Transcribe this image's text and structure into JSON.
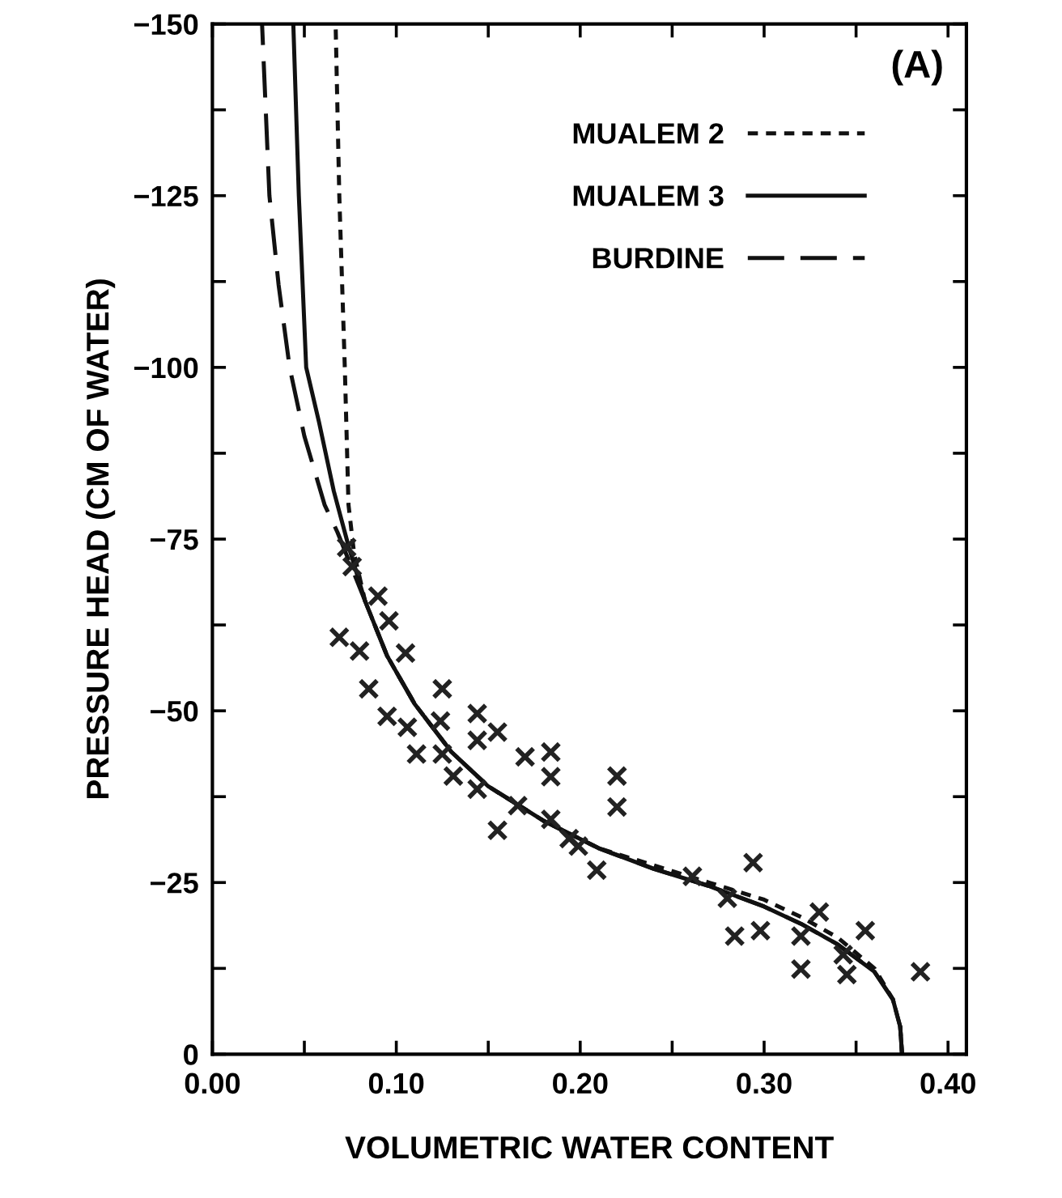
{
  "chart_data": {
    "type": "line",
    "xlabel": "VOLUMETRIC WATER CONTENT",
    "ylabel": "PRESSURE HEAD (CM OF WATER)",
    "annotations": [
      "(A)"
    ],
    "xlim": [
      0,
      0.41
    ],
    "ylim": [
      0,
      -150
    ],
    "xticks": [
      {
        "value": 0,
        "label": "0.00"
      },
      {
        "value": 0.05,
        "label": null
      },
      {
        "value": 0.1,
        "label": "0.10"
      },
      {
        "value": 0.15,
        "label": null
      },
      {
        "value": 0.2,
        "label": "0.20"
      },
      {
        "value": 0.25,
        "label": null
      },
      {
        "value": 0.3,
        "label": "0.30"
      },
      {
        "value": 0.35,
        "label": null
      },
      {
        "value": 0.4,
        "label": "0.40"
      }
    ],
    "yticks": [
      0,
      {
        "value": -12.5,
        "label": null
      },
      -25,
      {
        "value": -37.5,
        "label": null
      },
      -50,
      {
        "value": -62.5,
        "label": null
      },
      -75,
      {
        "value": -87.5,
        "label": null
      },
      -100,
      {
        "value": -112.5,
        "label": null
      },
      -125,
      {
        "value": -137.5,
        "label": null
      },
      -150
    ],
    "grid": false,
    "legend": "top right",
    "series": [
      {
        "type": "scatter",
        "color": "#222222",
        "marker": "cross",
        "x": [
          0.073,
          0.076,
          0.09,
          0.096,
          0.069,
          0.08,
          0.105,
          0.085,
          0.095,
          0.106,
          0.111,
          0.125,
          0.124,
          0.125,
          0.131,
          0.144,
          0.144,
          0.144,
          0.155,
          0.17,
          0.184,
          0.184,
          0.166,
          0.155,
          0.184,
          0.194,
          0.199,
          0.209,
          0.22,
          0.22,
          0.261,
          0.28,
          0.294,
          0.284,
          0.298,
          0.32,
          0.33,
          0.32,
          0.355,
          0.345,
          0.343,
          0.385
        ],
        "values": [
          -73.8,
          -71,
          -66.7,
          -63.1,
          -60.7,
          -58.7,
          -58.4,
          -53.2,
          -49.2,
          -47.6,
          -43.7,
          -53.2,
          -48.5,
          -43.7,
          -40.5,
          -49.6,
          -45.7,
          -38.6,
          -46.9,
          -43.3,
          -44,
          -40.4,
          -36.2,
          -32.6,
          -34.2,
          -31.4,
          -30.3,
          -26.8,
          -40.5,
          -36,
          -25.9,
          -22.7,
          -27.9,
          -17.2,
          -18,
          -17.2,
          -20.7,
          -12.4,
          -18,
          -11.6,
          -14.5,
          -12
        ]
      },
      {
        "name": "MUALEM 2",
        "color": "#111111",
        "line_style": "dotted",
        "x": [
          0.375,
          0.374,
          0.37,
          0.36,
          0.34,
          0.32,
          0.3,
          0.27,
          0.24,
          0.21,
          0.18,
          0.15,
          0.13,
          0.11,
          0.095,
          0.083,
          0.077,
          0.074,
          0.072,
          0.069,
          0.067
        ],
        "values": [
          0,
          -4,
          -8,
          -12.5,
          -17,
          -20,
          -22.5,
          -25,
          -27.5,
          -30,
          -34,
          -39,
          -44,
          -51,
          -58,
          -66,
          -73,
          -80,
          -100,
          -125,
          -150
        ]
      },
      {
        "name": "MUALEM 3",
        "color": "#111111",
        "line_style": "solid",
        "x": [
          0.375,
          0.374,
          0.37,
          0.36,
          0.34,
          0.32,
          0.3,
          0.27,
          0.24,
          0.21,
          0.18,
          0.15,
          0.13,
          0.11,
          0.095,
          0.083,
          0.074,
          0.066,
          0.058,
          0.051,
          0.047,
          0.044
        ],
        "values": [
          0,
          -4,
          -8,
          -12,
          -16,
          -19,
          -21.5,
          -24.5,
          -27,
          -30,
          -34,
          -39,
          -44,
          -51,
          -58,
          -66,
          -74,
          -82,
          -92,
          -100,
          -125,
          -150
        ]
      },
      {
        "name": "BURDINE",
        "color": "#111111",
        "line_style": "dashed",
        "x": [
          0.375,
          0.374,
          0.37,
          0.36,
          0.34,
          0.32,
          0.3,
          0.27,
          0.24,
          0.21,
          0.18,
          0.15,
          0.13,
          0.11,
          0.095,
          0.083,
          0.077,
          0.068,
          0.061,
          0.05,
          0.042,
          0.036,
          0.031,
          0.027
        ],
        "values": [
          0,
          -4,
          -8,
          -12,
          -16,
          -19,
          -21.5,
          -24.5,
          -27,
          -30,
          -34,
          -39,
          -44,
          -51,
          -58,
          -66,
          -70,
          -76,
          -80,
          -90,
          -100,
          -112,
          -125,
          -150
        ]
      }
    ]
  }
}
